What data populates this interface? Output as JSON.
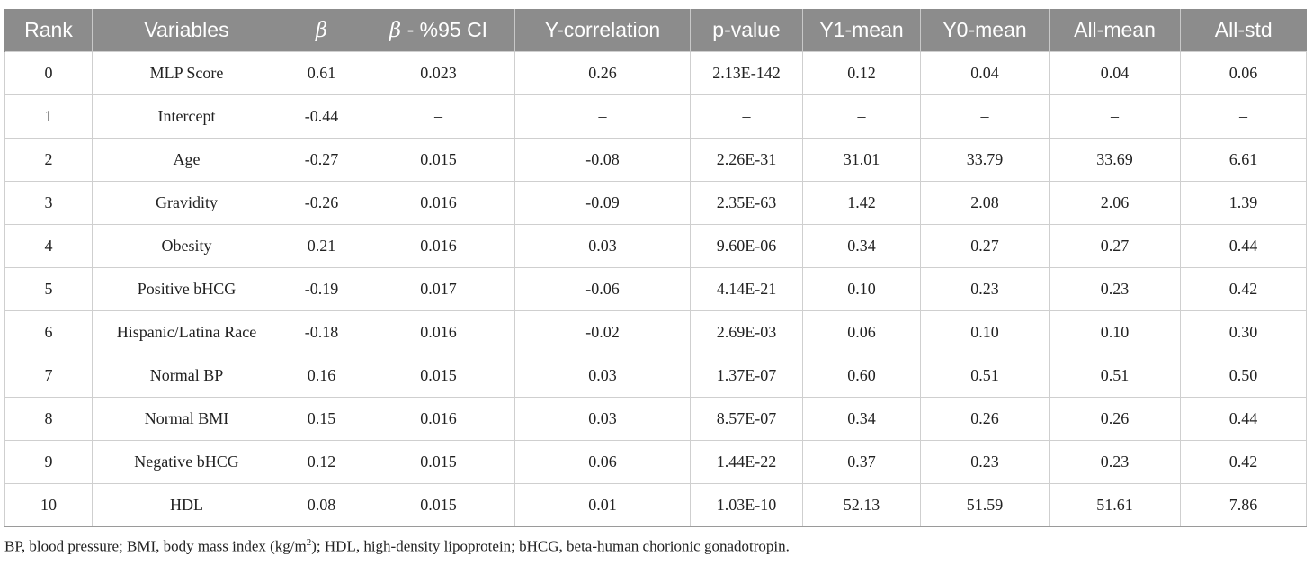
{
  "table": {
    "headers": {
      "rank": "Rank",
      "variables": "Variables",
      "beta": "β",
      "beta_ci_symbol": "β",
      "beta_ci_suffix": " - %95 CI",
      "y_correlation": "Y-correlation",
      "p_value": "p-value",
      "y1_mean": "Y1-mean",
      "y0_mean": "Y0-mean",
      "all_mean": "All-mean",
      "all_std": "All-std"
    },
    "rows": [
      {
        "rank": "0",
        "variable": "MLP Score",
        "beta": "0.61",
        "beta_ci": "0.023",
        "y_corr": "0.26",
        "p_value": "2.13E-142",
        "y1_mean": "0.12",
        "y0_mean": "0.04",
        "all_mean": "0.04",
        "all_std": "0.06"
      },
      {
        "rank": "1",
        "variable": "Intercept",
        "beta": "-0.44",
        "beta_ci": "–",
        "y_corr": "–",
        "p_value": "–",
        "y1_mean": "–",
        "y0_mean": "–",
        "all_mean": "–",
        "all_std": "–"
      },
      {
        "rank": "2",
        "variable": "Age",
        "beta": "-0.27",
        "beta_ci": "0.015",
        "y_corr": "-0.08",
        "p_value": "2.26E-31",
        "y1_mean": "31.01",
        "y0_mean": "33.79",
        "all_mean": "33.69",
        "all_std": "6.61"
      },
      {
        "rank": "3",
        "variable": "Gravidity",
        "beta": "-0.26",
        "beta_ci": "0.016",
        "y_corr": "-0.09",
        "p_value": "2.35E-63",
        "y1_mean": "1.42",
        "y0_mean": "2.08",
        "all_mean": "2.06",
        "all_std": "1.39"
      },
      {
        "rank": "4",
        "variable": "Obesity",
        "beta": "0.21",
        "beta_ci": "0.016",
        "y_corr": "0.03",
        "p_value": "9.60E-06",
        "y1_mean": "0.34",
        "y0_mean": "0.27",
        "all_mean": "0.27",
        "all_std": "0.44"
      },
      {
        "rank": "5",
        "variable": "Positive bHCG",
        "beta": "-0.19",
        "beta_ci": "0.017",
        "y_corr": "-0.06",
        "p_value": "4.14E-21",
        "y1_mean": "0.10",
        "y0_mean": "0.23",
        "all_mean": "0.23",
        "all_std": "0.42"
      },
      {
        "rank": "6",
        "variable": "Hispanic/Latina Race",
        "beta": "-0.18",
        "beta_ci": "0.016",
        "y_corr": "-0.02",
        "p_value": "2.69E-03",
        "y1_mean": "0.06",
        "y0_mean": "0.10",
        "all_mean": "0.10",
        "all_std": "0.30"
      },
      {
        "rank": "7",
        "variable": "Normal BP",
        "beta": "0.16",
        "beta_ci": "0.015",
        "y_corr": "0.03",
        "p_value": "1.37E-07",
        "y1_mean": "0.60",
        "y0_mean": "0.51",
        "all_mean": "0.51",
        "all_std": "0.50"
      },
      {
        "rank": "8",
        "variable": "Normal BMI",
        "beta": "0.15",
        "beta_ci": "0.016",
        "y_corr": "0.03",
        "p_value": "8.57E-07",
        "y1_mean": "0.34",
        "y0_mean": "0.26",
        "all_mean": "0.26",
        "all_std": "0.44"
      },
      {
        "rank": "9",
        "variable": "Negative bHCG",
        "beta": "0.12",
        "beta_ci": "0.015",
        "y_corr": "0.06",
        "p_value": "1.44E-22",
        "y1_mean": "0.37",
        "y0_mean": "0.23",
        "all_mean": "0.23",
        "all_std": "0.42"
      },
      {
        "rank": "10",
        "variable": "HDL",
        "beta": "0.08",
        "beta_ci": "0.015",
        "y_corr": "0.01",
        "p_value": "1.03E-10",
        "y1_mean": "52.13",
        "y0_mean": "51.59",
        "all_mean": "51.61",
        "all_std": "7.86"
      }
    ]
  },
  "footnote": {
    "text_before_sup": "BP, blood pressure; BMI, body mass index (kg/m",
    "sup": "2",
    "text_after_sup": "); HDL, high-density lipoprotein; bHCG, beta-human chorionic gonadotropin."
  }
}
